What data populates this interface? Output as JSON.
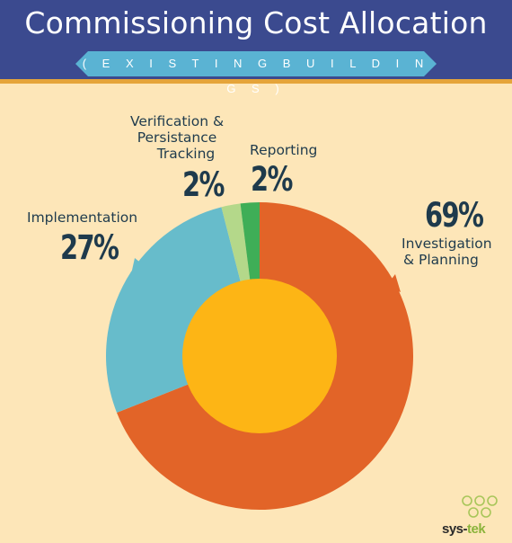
{
  "title": "Commissioning Cost Allocation",
  "subtitle": "( E X I S T I N G   B U I L D I N G S )",
  "colors": {
    "header": "#3b4a8f",
    "banner": "#5ab3d3",
    "background": "#fde6b8",
    "investigation": "#e26428",
    "implementation": "#67bccb",
    "verification": "#b4d88a",
    "reporting": "#3fae57",
    "center": "#fdb515"
  },
  "chart_data": {
    "type": "pie",
    "title": "Commissioning Cost Allocation",
    "subtitle": "( E X I S T I N G   B U I L D I N G S )",
    "slices": [
      {
        "label": "Investigation & Planning",
        "value": 69,
        "display": "69%"
      },
      {
        "label": "Implementation",
        "value": 27,
        "display": "27%"
      },
      {
        "label": "Verification & Persistance Tracking",
        "value": 2,
        "display": "2%"
      },
      {
        "label": "Reporting",
        "value": 2,
        "display": "2%"
      }
    ]
  },
  "labels": {
    "verification_line1": "Verification &",
    "verification_line2": "Persistance",
    "verification_line3": "Tracking",
    "reporting": "Reporting",
    "implementation": "Implementation",
    "investigation_line1": "Investigation",
    "investigation_line2": "& Planning"
  },
  "logo": {
    "brand_prefix": "sys-",
    "brand_suffix": "tek"
  }
}
